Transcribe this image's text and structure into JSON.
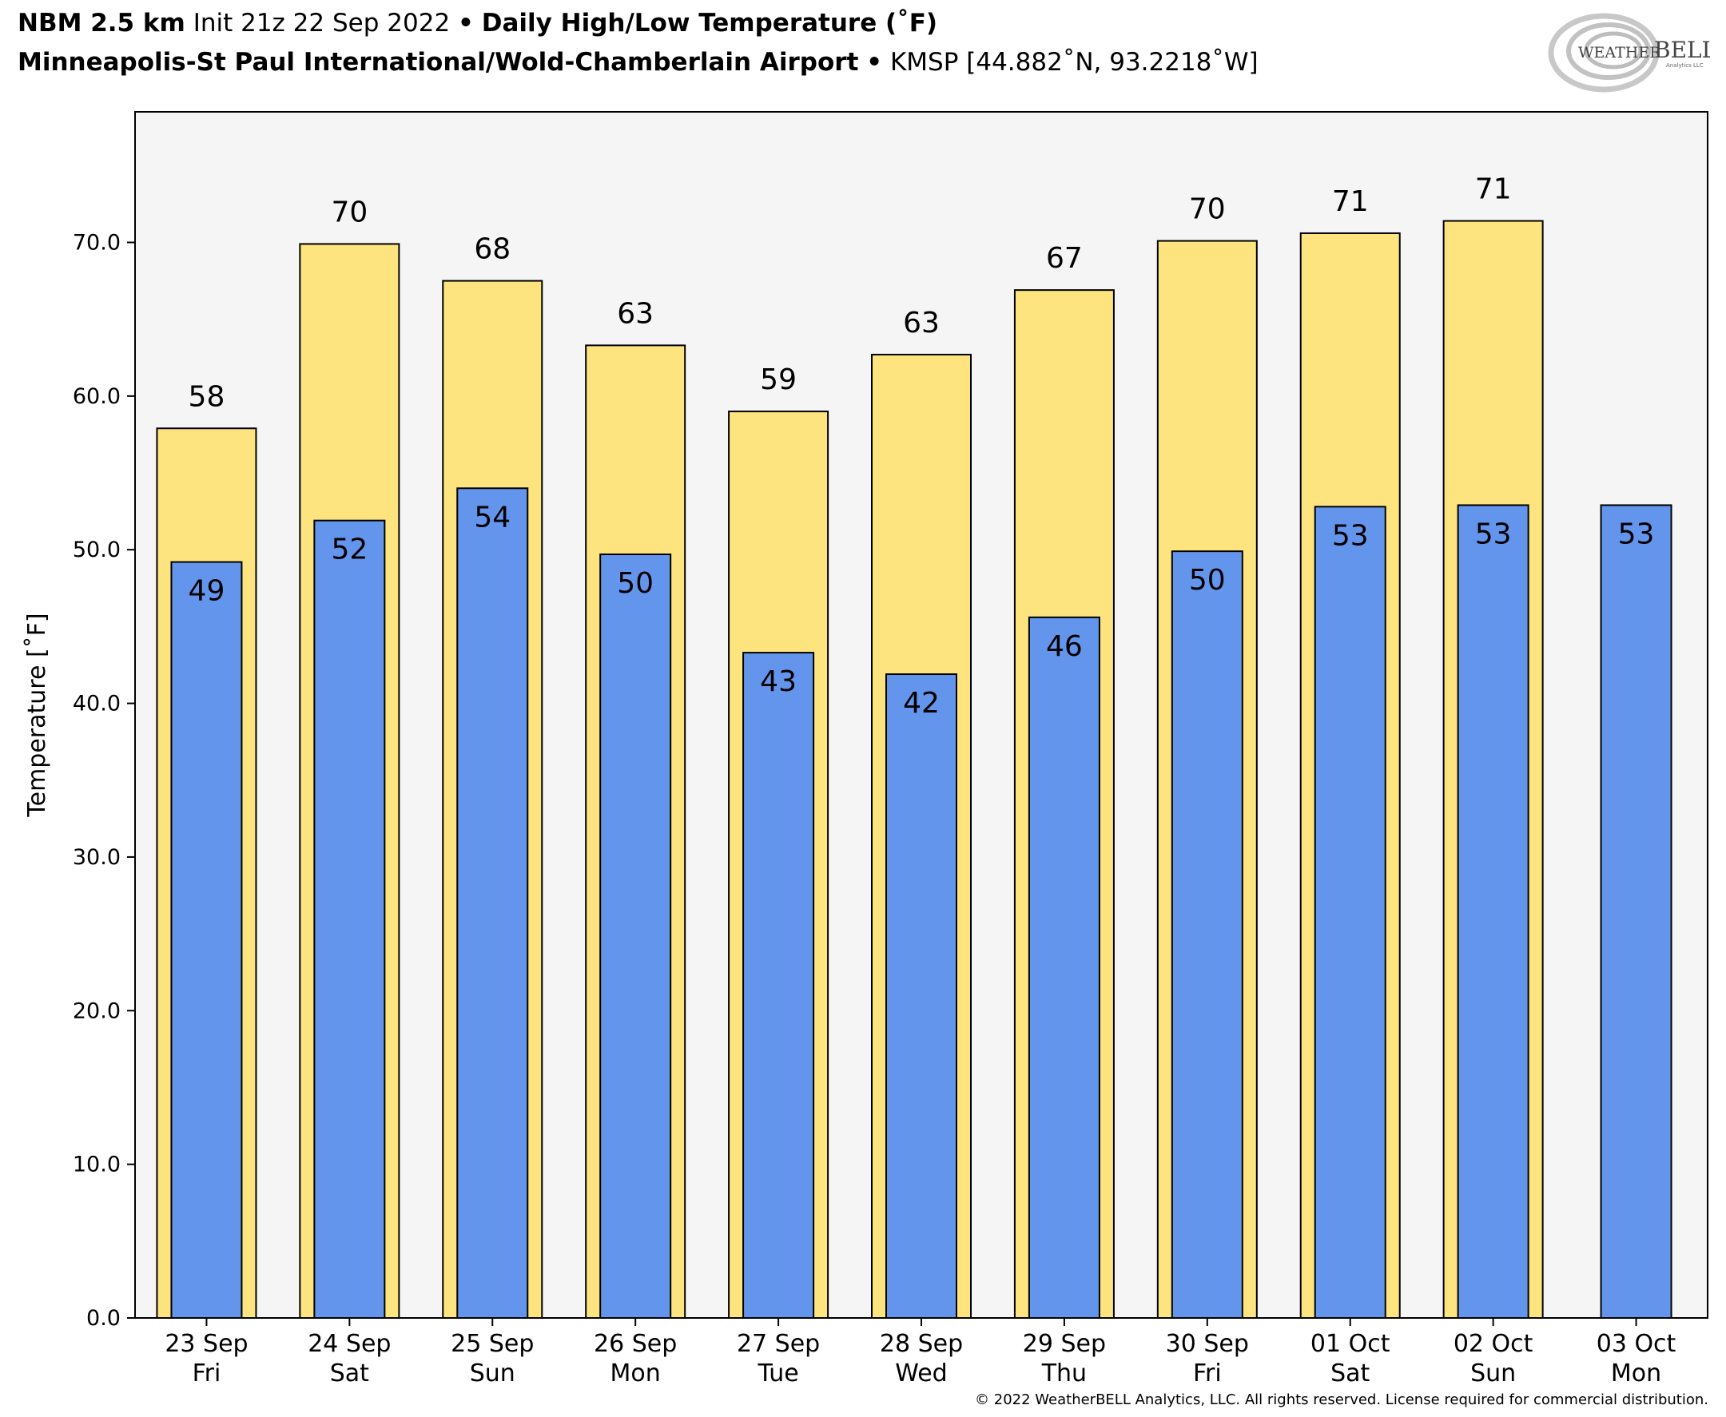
{
  "header": {
    "line1": {
      "model": "NBM 2.5 km",
      "init": "Init 21z 22 Sep 2022",
      "sep": "•",
      "product": "Daily High/Low Temperature (˚F)"
    },
    "line2": {
      "station": "Minneapolis-St Paul International/Wold-Chamberlain Airport",
      "sep": "•",
      "coords": "KMSP [44.882˚N, 93.2218˚W]"
    }
  },
  "logo": {
    "text_top": "WEATHER",
    "text_main": "BELL",
    "text_sub": "Analytics LLC",
    "icon": "swirl-logo-icon"
  },
  "copyright": "© 2022 WeatherBELL Analytics, LLC. All rights reserved. License required for commercial distribution.",
  "colors": {
    "high_fill": "#fde47f",
    "low_fill": "#6495ed",
    "plot_bg": "#f6f5f6",
    "bar_edge": "#000000"
  },
  "chart_data": {
    "type": "bar",
    "ylabel": "Temperature [˚F]",
    "ylim": [
      0,
      78.5
    ],
    "yticks": [
      0,
      10,
      20,
      30,
      40,
      50,
      60,
      70
    ],
    "ytick_labels": [
      "0.0",
      "10.0",
      "20.0",
      "30.0",
      "40.0",
      "50.0",
      "60.0",
      "70.0"
    ],
    "grid": false,
    "categories": [
      [
        "23 Sep",
        "Fri"
      ],
      [
        "24 Sep",
        "Sat"
      ],
      [
        "25 Sep",
        "Sun"
      ],
      [
        "26 Sep",
        "Mon"
      ],
      [
        "27 Sep",
        "Tue"
      ],
      [
        "28 Sep",
        "Wed"
      ],
      [
        "29 Sep",
        "Thu"
      ],
      [
        "30 Sep",
        "Fri"
      ],
      [
        "01 Oct",
        "Sat"
      ],
      [
        "02 Oct",
        "Sun"
      ],
      [
        "03 Oct",
        "Mon"
      ]
    ],
    "series": [
      {
        "role": "high",
        "values": [
          57.9,
          69.9,
          67.5,
          63.3,
          59.0,
          62.7,
          66.9,
          70.1,
          70.6,
          71.4,
          null
        ],
        "labels": [
          "58",
          "70",
          "68",
          "63",
          "59",
          "63",
          "67",
          "70",
          "71",
          "71",
          ""
        ]
      },
      {
        "role": "low",
        "values": [
          49.2,
          51.9,
          54.0,
          49.7,
          43.3,
          41.9,
          45.6,
          49.9,
          52.8,
          52.9,
          52.9
        ],
        "labels": [
          "49",
          "52",
          "54",
          "50",
          "43",
          "42",
          "46",
          "50",
          "53",
          "53",
          "53"
        ]
      }
    ]
  }
}
